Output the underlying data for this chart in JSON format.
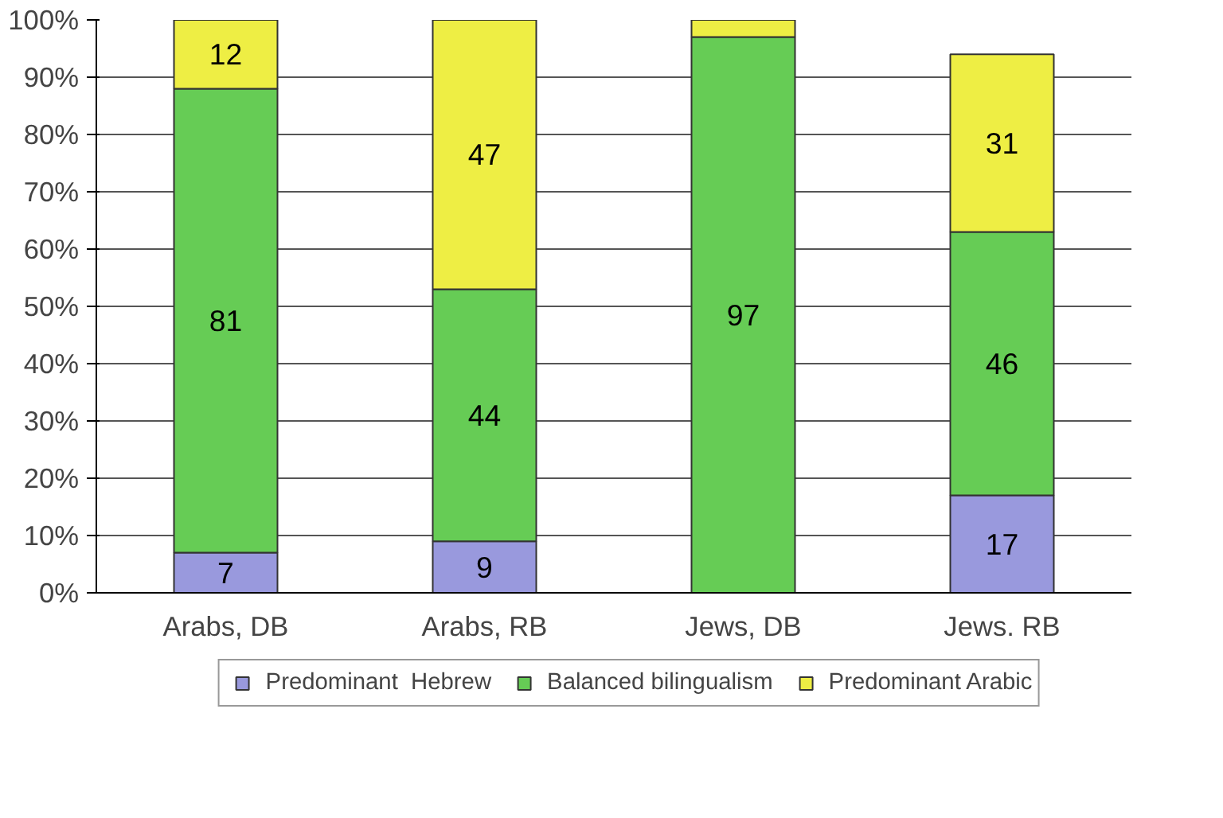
{
  "chart_data": {
    "type": "bar",
    "stacked": true,
    "categories": [
      "Arabs, DB",
      "Arabs, RB",
      "Jews, DB",
      "Jews. RB"
    ],
    "series": [
      {
        "name": "Predominant  Hebrew",
        "color": "#9999dd",
        "values": [
          7,
          9,
          null,
          17
        ],
        "value_labels": [
          "7",
          "9",
          null,
          "17"
        ]
      },
      {
        "name": "Balanced bilingualism",
        "color": "#66cc55",
        "values": [
          81,
          44,
          97,
          46
        ],
        "value_labels": [
          "81",
          "44",
          "97",
          "46"
        ]
      },
      {
        "name": "Predominant Arabic",
        "color": "#eeee44",
        "values": [
          12,
          47,
          3,
          31
        ],
        "value_labels": [
          "12",
          "47",
          null,
          "31"
        ]
      }
    ],
    "ylim": [
      0,
      100
    ],
    "yticks": [
      {
        "value": 0,
        "label": "0%"
      },
      {
        "value": 10,
        "label": "10%"
      },
      {
        "value": 20,
        "label": "20%"
      },
      {
        "value": 30,
        "label": "30%"
      },
      {
        "value": 40,
        "label": "40%"
      },
      {
        "value": 50,
        "label": "50%"
      },
      {
        "value": 60,
        "label": "60%"
      },
      {
        "value": 70,
        "label": "70%"
      },
      {
        "value": 80,
        "label": "80%"
      },
      {
        "value": 90,
        "label": "90%"
      },
      {
        "value": 100,
        "label": "100%"
      }
    ],
    "grid": "y",
    "legend": "bottom"
  }
}
